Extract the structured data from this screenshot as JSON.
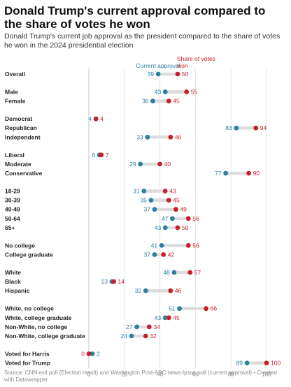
{
  "header": {
    "title": "Donald Trump's current approval compared to the share of votes he won",
    "subtitle": "Donald Trump's current job approval as the president compared to the share of votes he won in the 2024 presidential election"
  },
  "footer": {
    "notes": "Source: CNN exit poll (Election result) and Washington Post-ABC news-Ipsos poll (current approval) • Created with Datawrapper"
  },
  "chart_data": {
    "type": "dot",
    "title": "Donald Trump's current approval compared to the share of votes he won",
    "xlim": [
      0,
      100
    ],
    "xticks": [
      "0",
      "20",
      "40",
      "60",
      "80",
      "100"
    ],
    "grid": true,
    "legend_placement": "top",
    "series": [
      {
        "name": "Current approval",
        "color": "#2a7fa3"
      },
      {
        "name": "Share of votes won",
        "color": "#c8202a"
      }
    ],
    "groups": [
      {
        "rows": [
          {
            "label": "Overall",
            "approval": 39,
            "votes": 50
          }
        ]
      },
      {
        "rows": [
          {
            "label": "Male",
            "approval": 43,
            "votes": 55
          },
          {
            "label": "Female",
            "approval": 36,
            "votes": 45
          }
        ]
      },
      {
        "rows": [
          {
            "label": "Democrat",
            "approval": 4,
            "votes": 4
          },
          {
            "label": "Republican",
            "approval": 83,
            "votes": 94
          },
          {
            "label": "Independent",
            "approval": 33,
            "votes": 46
          }
        ]
      },
      {
        "rows": [
          {
            "label": "Liberal",
            "approval": 6,
            "votes": 7
          },
          {
            "label": "Moderate",
            "approval": 29,
            "votes": 40
          },
          {
            "label": "Conservative",
            "approval": 77,
            "votes": 90
          }
        ]
      },
      {
        "rows": [
          {
            "label": "18-29",
            "approval": 31,
            "votes": 43
          },
          {
            "label": "30-39",
            "approval": 35,
            "votes": 45
          },
          {
            "label": "40-49",
            "approval": 37,
            "votes": 49
          },
          {
            "label": "50-64",
            "approval": 47,
            "votes": 56
          },
          {
            "label": "65+",
            "approval": 43,
            "votes": 50
          }
        ]
      },
      {
        "rows": [
          {
            "label": "No college",
            "approval": 41,
            "votes": 56
          },
          {
            "label": "College graduate",
            "approval": 37,
            "votes": 42
          }
        ]
      },
      {
        "rows": [
          {
            "label": "White",
            "approval": 48,
            "votes": 57
          },
          {
            "label": "Black",
            "approval": 13,
            "votes": 14
          },
          {
            "label": "Hispanic",
            "approval": 32,
            "votes": 46
          }
        ]
      },
      {
        "rows": [
          {
            "label": "White, no college",
            "approval": 51,
            "votes": 66
          },
          {
            "label": "White, college graduate",
            "approval": 43,
            "votes": 45
          },
          {
            "label": "Non-White, no college",
            "approval": 27,
            "votes": 34
          },
          {
            "label": "Non-White, college graduate",
            "approval": 24,
            "votes": 32
          }
        ]
      },
      {
        "rows": [
          {
            "label": "Voted for Harris",
            "approval": 2,
            "votes": 0
          },
          {
            "label": "Voted for Trump",
            "approval": 89,
            "votes": 100
          }
        ]
      }
    ]
  }
}
